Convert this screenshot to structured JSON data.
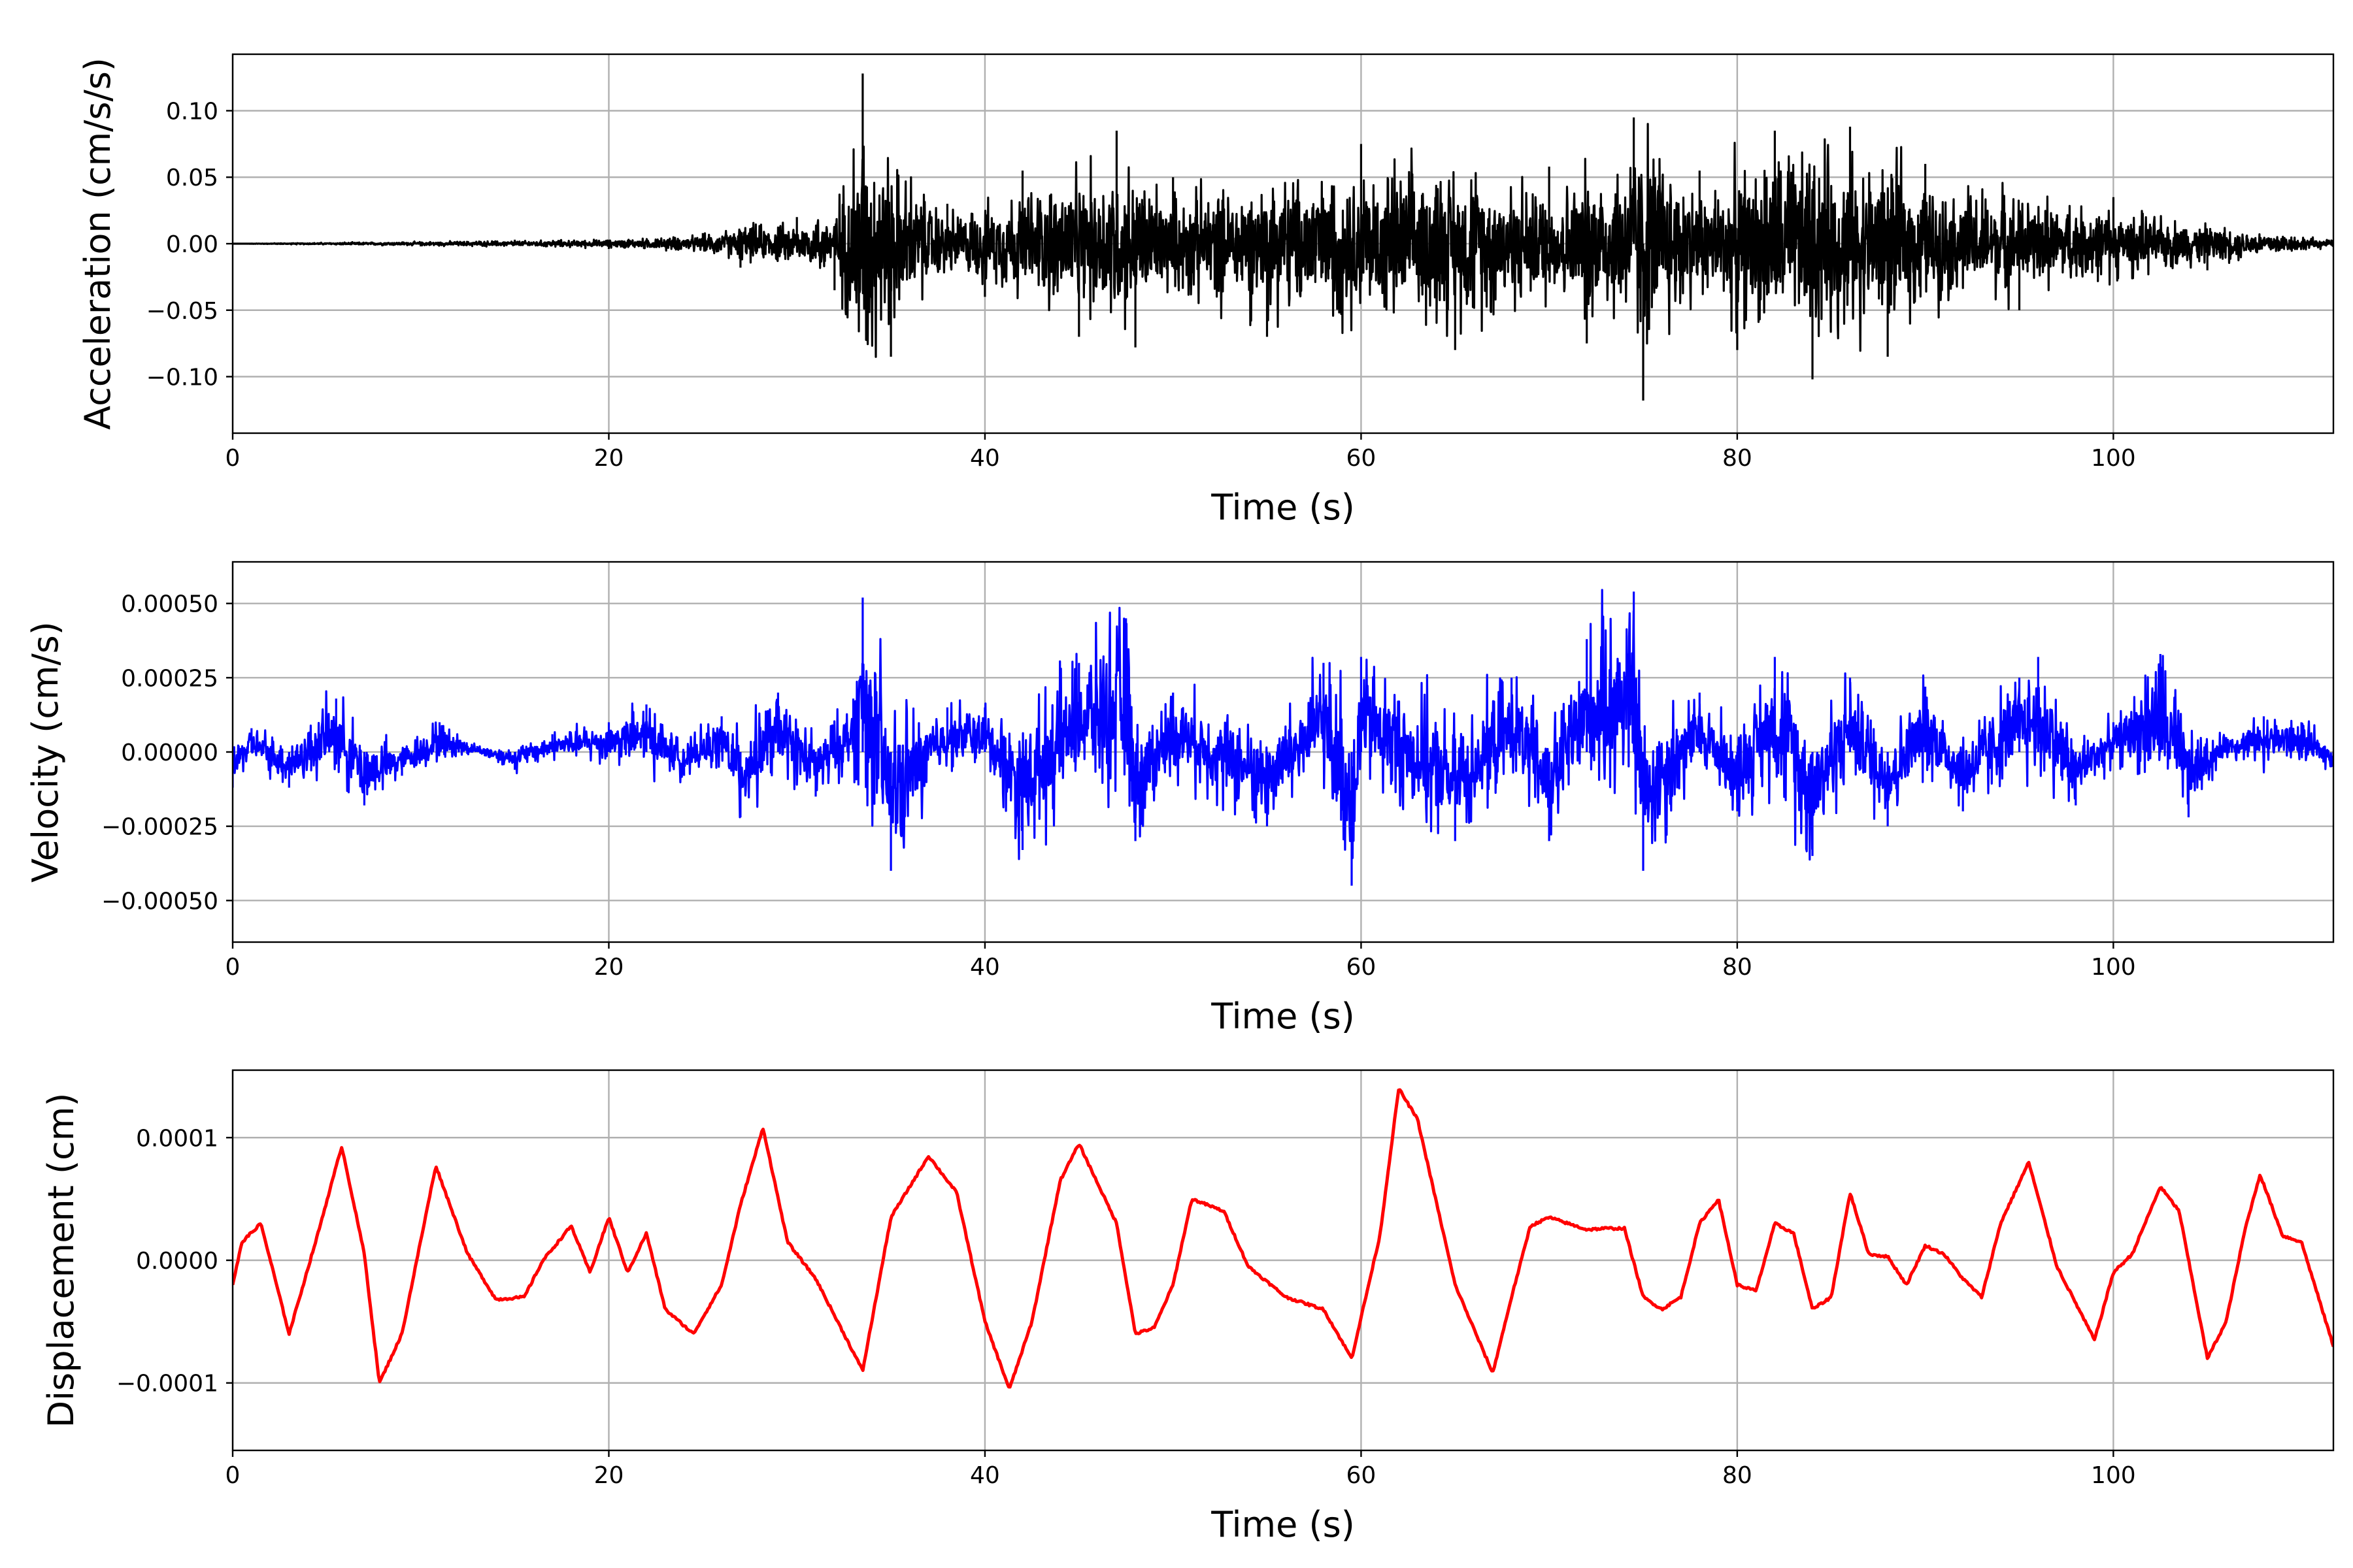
{
  "chart_data": [
    {
      "type": "line",
      "ylabel": "Acceleration (cm/s/s)",
      "xlabel": "Time (s)",
      "xlim": [
        0,
        111.7
      ],
      "ylim": [
        -0.1425,
        0.1425
      ],
      "xticks": [
        0,
        20,
        40,
        60,
        80,
        100
      ],
      "xtick_labels": [
        "0",
        "20",
        "40",
        "60",
        "80",
        "100"
      ],
      "yticks": [
        -0.1,
        -0.05,
        0.0,
        0.05,
        0.1
      ],
      "ytick_labels": [
        "−0.10",
        "−0.05",
        "0.00",
        "0.05",
        "0.10"
      ],
      "grid": true,
      "color": "#000000",
      "series": [
        {
          "x": [
            0,
            5,
            10,
            15,
            20,
            25,
            27,
            30,
            32,
            33.5,
            35,
            38,
            40,
            42,
            45,
            47,
            48,
            50,
            55,
            60,
            65,
            70,
            72,
            74.5,
            75,
            78,
            80,
            82,
            84,
            86,
            88,
            90,
            95,
            100,
            105,
            111.7
          ],
          "y": [
            0.0,
            0.001,
            -0.002,
            0.003,
            -0.004,
            0.008,
            -0.018,
            0.02,
            -0.035,
            0.128,
            -0.085,
            0.03,
            -0.04,
            0.055,
            -0.07,
            0.085,
            -0.078,
            0.05,
            -0.07,
            0.075,
            -0.08,
            0.058,
            -0.075,
            0.095,
            -0.118,
            0.055,
            -0.08,
            0.085,
            -0.102,
            0.088,
            -0.085,
            0.06,
            -0.05,
            0.035,
            -0.02,
            0.003
          ]
        }
      ]
    },
    {
      "type": "line",
      "ylabel": "Velocity (cm/s)",
      "xlabel": "Time (s)",
      "xlim": [
        0,
        111.7
      ],
      "ylim": [
        -0.00064,
        0.00064
      ],
      "xticks": [
        0,
        20,
        40,
        60,
        80,
        100
      ],
      "xtick_labels": [
        "0",
        "20",
        "40",
        "60",
        "80",
        "100"
      ],
      "yticks": [
        -0.0005,
        -0.00025,
        0,
        0.00025,
        0.0005
      ],
      "ytick_labels": [
        "−0.00050",
        "−0.00025",
        "0.00000",
        "0.00025",
        "0.00050"
      ],
      "grid": true,
      "color": "#0000ff",
      "series": [
        {
          "x": [
            0,
            1,
            3,
            5.5,
            7,
            9,
            11,
            13,
            15,
            17,
            20,
            22,
            24,
            26,
            27,
            29,
            31,
            33,
            33.5,
            35,
            38,
            40,
            42,
            45,
            47.5,
            48,
            50,
            55,
            58,
            59.5,
            60,
            65,
            68,
            70,
            72,
            74.5,
            75,
            78,
            80,
            82,
            84,
            86,
            88,
            90,
            92,
            95,
            96,
            98,
            100,
            102.5,
            104,
            106,
            108,
            110,
            111.7
          ],
          "y": [
            -0.00012,
            8e-05,
            -0.00012,
            0.00018,
            -0.00018,
            -8e-05,
            0.0001,
            2e-05,
            -6e-05,
            6e-05,
            0.0001,
            0.00016,
            -8e-05,
            0.00012,
            -0.00022,
            0.0002,
            -0.00015,
            0.00018,
            0.00052,
            -0.0004,
            0.00015,
            0.00015,
            -0.00033,
            0.0003,
            0.00045,
            -0.0003,
            0.0002,
            -0.00025,
            0.0003,
            -0.00045,
            0.00032,
            -0.0003,
            0.00025,
            -0.0003,
            0.00038,
            0.00054,
            -0.0004,
            0.0002,
            -0.0002,
            0.00032,
            -0.00035,
            0.00025,
            -0.00025,
            0.00022,
            -0.0002,
            0.00025,
            0.00032,
            -0.00018,
            0.0001,
            0.00033,
            -0.00022,
            5e-05,
            0.00012,
            0.0001,
            -5e-05
          ]
        }
      ]
    },
    {
      "type": "line",
      "ylabel": "Displacement (cm)",
      "xlabel": "Time (s)",
      "xlim": [
        0,
        111.7
      ],
      "ylim": [
        -0.000155,
        0.000155
      ],
      "xticks": [
        0,
        20,
        40,
        60,
        80,
        100
      ],
      "xtick_labels": [
        "0",
        "20",
        "40",
        "60",
        "80",
        "100"
      ],
      "yticks": [
        -0.0001,
        0,
        0.0001
      ],
      "ytick_labels": [
        "−0.0001",
        "0.0000",
        "0.0001"
      ],
      "grid": true,
      "color": "#ff0000",
      "series": [
        {
          "x": [
            0,
            0.5,
            1.5,
            3,
            4.5,
            5.8,
            7,
            7.8,
            9,
            10.8,
            12.5,
            14,
            15.5,
            16.5,
            18,
            19,
            20,
            21,
            22,
            23,
            24.5,
            26,
            27,
            28.2,
            29.5,
            31,
            32.5,
            33.5,
            35,
            37,
            38.5,
            40,
            41.3,
            42.5,
            44,
            45,
            47,
            48,
            49,
            50,
            51,
            52.7,
            54,
            56,
            58,
            59.5,
            61,
            62,
            63,
            65,
            67,
            68,
            69,
            70,
            71,
            72,
            73,
            74,
            75,
            76,
            77,
            78,
            79,
            80,
            81,
            82,
            83,
            84,
            85,
            86,
            87,
            88,
            89,
            90,
            91,
            92,
            93,
            94,
            95.5,
            97,
            99,
            100,
            101,
            102.5,
            103.5,
            105,
            106,
            107,
            107.8,
            109,
            110,
            111.7
          ],
          "y": [
            -2e-05,
            1.5e-05,
            3e-05,
            -6e-05,
            2e-05,
            9.3e-05,
            5e-06,
            -0.0001,
            -6e-05,
            7.7e-05,
            5e-06,
            -3.2e-05,
            -3e-05,
            0.0,
            2.8e-05,
            -1e-05,
            3.5e-05,
            -1e-05,
            2.2e-05,
            -4e-05,
            -6e-05,
            -2e-05,
            4.5e-05,
            0.000108,
            1.5e-05,
            -1.5e-05,
            -6e-05,
            -9e-05,
            3.5e-05,
            8.5e-05,
            5.5e-05,
            -5e-05,
            -0.000105,
            -5e-05,
            6.5e-05,
            9.5e-05,
            3e-05,
            -6e-05,
            -5.5e-05,
            -2e-05,
            5e-05,
            4e-05,
            -5e-06,
            -3e-05,
            -4e-05,
            -8e-05,
            2e-05,
            0.00014,
            0.000115,
            -2e-05,
            -9.2e-05,
            -3e-05,
            2.8e-05,
            3.5e-05,
            3e-05,
            2.5e-05,
            2.6e-05,
            2.6e-05,
            -3e-05,
            -4e-05,
            -3e-05,
            3e-05,
            5e-05,
            -2e-05,
            -2.5e-05,
            3e-05,
            2.2e-05,
            -4e-05,
            -3e-05,
            5.5e-05,
            5e-06,
            3e-06,
            -2e-05,
            1.2e-05,
            5e-06,
            -1.5e-05,
            -3e-05,
            3e-05,
            8e-05,
            -5e-06,
            -6.5e-05,
            -1e-05,
            5e-06,
            6e-05,
            4e-05,
            -8e-05,
            -5e-05,
            2.5e-05,
            7e-05,
            2e-05,
            1.5e-05,
            -7e-05
          ]
        }
      ]
    }
  ]
}
